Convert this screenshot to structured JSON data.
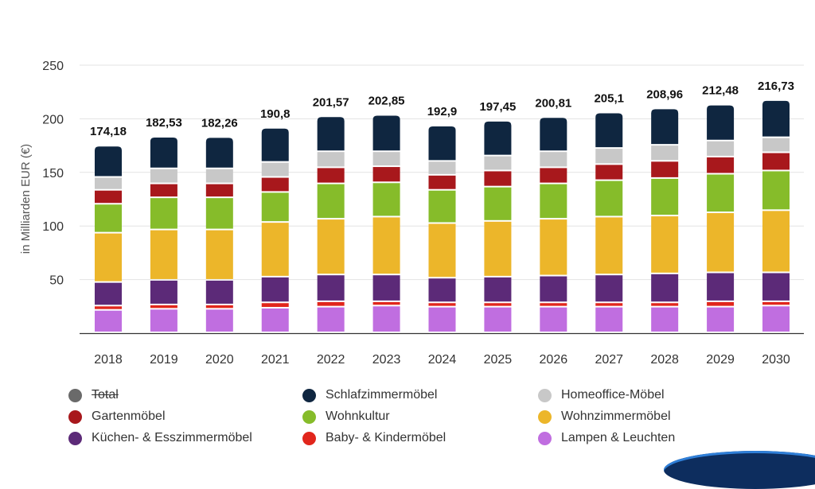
{
  "chart_data": {
    "type": "bar",
    "stacked": true,
    "title": "",
    "xlabel": "",
    "ylabel": "in Milliarden EUR (€)",
    "ylim": [
      0,
      250
    ],
    "yticks": [
      50,
      100,
      150,
      200,
      250
    ],
    "grid": true,
    "categories": [
      "2018",
      "2019",
      "2020",
      "2021",
      "2022",
      "2023",
      "2024",
      "2025",
      "2026",
      "2027",
      "2028",
      "2029",
      "2030"
    ],
    "totals": [
      174.18,
      182.53,
      182.26,
      190.8,
      201.57,
      202.85,
      192.9,
      197.45,
      200.81,
      205.1,
      208.96,
      212.48,
      216.73
    ],
    "total_labels": [
      "174,18",
      "182,53",
      "182,26",
      "190,8",
      "201,57",
      "202,85",
      "192,9",
      "197,45",
      "200,81",
      "205,1",
      "208,96",
      "212,48",
      "216,73"
    ],
    "series": [
      {
        "name": "Lampen & Leuchten",
        "color": "#c06ee0",
        "values": [
          21,
          22,
          22,
          23,
          24,
          25,
          24,
          24,
          24,
          24,
          24,
          24,
          25
        ]
      },
      {
        "name": "Baby- & Kindermöbel",
        "color": "#e1261c",
        "values": [
          4,
          4,
          4,
          5,
          5,
          4,
          4,
          4,
          4,
          4,
          4,
          5,
          4
        ]
      },
      {
        "name": "Küchen- & Esszimmermöbel",
        "color": "#5c2a78",
        "values": [
          22,
          23,
          23,
          24,
          25,
          25,
          23,
          24,
          25,
          26,
          27,
          27,
          27
        ]
      },
      {
        "name": "Wohnzimmermöbel",
        "color": "#ecb62a",
        "values": [
          46,
          47,
          47,
          51,
          52,
          54,
          51,
          52,
          53,
          54,
          54,
          56,
          58
        ]
      },
      {
        "name": "Wohnkultur",
        "color": "#86bc2a",
        "values": [
          27,
          30,
          30,
          28,
          33,
          32,
          31,
          32,
          33,
          34,
          35,
          36,
          37
        ]
      },
      {
        "name": "Gartenmöbel",
        "color": "#a8181c",
        "values": [
          13,
          13,
          13,
          14,
          15,
          15,
          14,
          15,
          15,
          15,
          16,
          16,
          17
        ]
      },
      {
        "name": "Homeoffice-Möbel",
        "color": "#c8c8c8",
        "values": [
          12,
          14,
          14,
          14,
          15,
          14,
          13,
          14,
          15,
          15,
          15,
          15,
          14
        ]
      },
      {
        "name": "Schlafzimmermöbel",
        "color": "#0f2640",
        "values": [
          29.18,
          29.53,
          29.26,
          31.8,
          32.57,
          33.85,
          32.9,
          32.45,
          31.81,
          33.1,
          33.96,
          33.48,
          34.73
        ]
      }
    ]
  },
  "legend": {
    "items": [
      {
        "label": "Total",
        "color": "#6a6a6a",
        "struck": true
      },
      {
        "label": "Schlafzimmermöbel",
        "color": "#0f2640",
        "struck": false
      },
      {
        "label": "Homeoffice-Möbel",
        "color": "#c8c8c8",
        "struck": false
      },
      {
        "label": "Gartenmöbel",
        "color": "#a8181c",
        "struck": false
      },
      {
        "label": "Wohnkultur",
        "color": "#86bc2a",
        "struck": false
      },
      {
        "label": "Wohnzimmermöbel",
        "color": "#ecb62a",
        "struck": false
      },
      {
        "label": "Küchen- & Esszimmermöbel",
        "color": "#5c2a78",
        "struck": false
      },
      {
        "label": "Baby- & Kindermöbel",
        "color": "#e1261c",
        "struck": false
      },
      {
        "label": "Lampen & Leuchten",
        "color": "#c06ee0",
        "struck": false
      }
    ]
  }
}
